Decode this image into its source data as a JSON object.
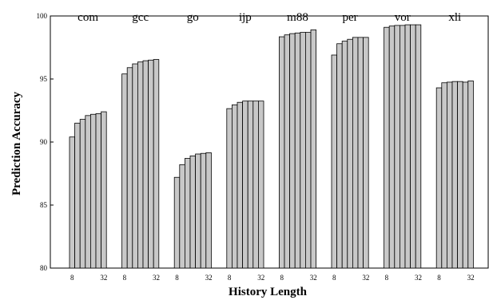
{
  "chart_data": {
    "type": "bar",
    "xlabel": "History Length",
    "ylabel": "Prediction Accuracy",
    "ylim": [
      80,
      100
    ],
    "yticks": [
      80,
      85,
      90,
      95,
      100
    ],
    "bar_color": "#c8c8c8",
    "history_tick_labels": [
      "8",
      "32"
    ],
    "groups": [
      {
        "name": "com",
        "values": [
          90.4,
          91.5,
          91.8,
          92.1,
          92.2,
          92.25,
          92.4
        ]
      },
      {
        "name": "gcc",
        "values": [
          95.4,
          95.9,
          96.2,
          96.35,
          96.45,
          96.5,
          96.55
        ]
      },
      {
        "name": "go",
        "values": [
          87.2,
          88.2,
          88.7,
          88.9,
          89.05,
          89.1,
          89.15
        ]
      },
      {
        "name": "ijp",
        "values": [
          92.65,
          92.95,
          93.15,
          93.25,
          93.25,
          93.25,
          93.25
        ]
      },
      {
        "name": "m88",
        "values": [
          98.35,
          98.5,
          98.6,
          98.65,
          98.7,
          98.7,
          98.9
        ]
      },
      {
        "name": "per",
        "values": [
          96.9,
          97.8,
          98.0,
          98.15,
          98.3,
          98.3,
          98.3
        ]
      },
      {
        "name": "vor",
        "values": [
          99.1,
          99.2,
          99.25,
          99.25,
          99.3,
          99.3,
          99.3
        ]
      },
      {
        "name": "xli",
        "values": [
          94.3,
          94.7,
          94.75,
          94.8,
          94.8,
          94.75,
          94.85
        ]
      }
    ]
  }
}
